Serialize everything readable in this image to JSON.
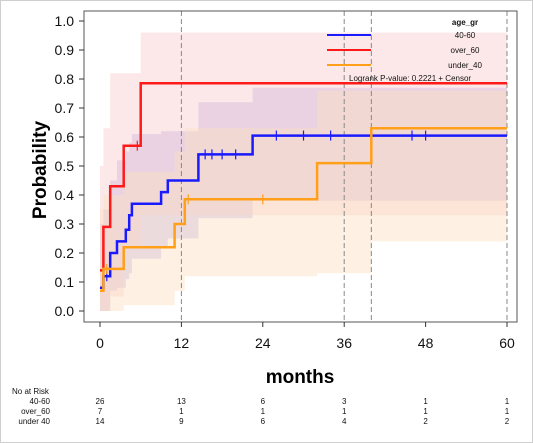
{
  "chart_data": {
    "type": "line",
    "step": true,
    "xlabel": "months",
    "ylabel": "Probability",
    "xlim": [
      0,
      60
    ],
    "ylim": [
      0,
      1
    ],
    "xticks": [
      0,
      12,
      24,
      36,
      48,
      60
    ],
    "yticks": [
      0.0,
      0.1,
      0.2,
      0.3,
      0.4,
      0.5,
      0.6,
      0.7,
      0.8,
      0.9,
      1.0
    ],
    "legend": {
      "title": "age_gr",
      "placement": "top-right"
    },
    "annotation": "Logrank P-value: 0.2221  +  Censor",
    "vlines": [
      12,
      36,
      40,
      60
    ],
    "series": [
      {
        "name": "40-60",
        "color": "#1a1aff",
        "fill": "#b9a6e8",
        "x": [
          0,
          0.5,
          1.5,
          2.5,
          3.8,
          4.3,
          4.7,
          9,
          10,
          14.5,
          22.5,
          60
        ],
        "y": [
          0.08,
          0.12,
          0.2,
          0.24,
          0.28,
          0.33,
          0.37,
          0.41,
          0.45,
          0.54,
          0.605,
          0.605
        ],
        "ci_lower": [
          0.0,
          0.0,
          0.07,
          0.08,
          0.11,
          0.13,
          0.18,
          0.22,
          0.25,
          0.32,
          0.38,
          0.38
        ],
        "ci_upper": [
          0.3,
          0.35,
          0.45,
          0.52,
          0.55,
          0.58,
          0.61,
          0.62,
          0.62,
          0.72,
          0.77,
          0.77
        ],
        "censor_x": [
          1,
          15.5,
          16.5,
          18,
          20,
          26,
          30,
          34,
          46,
          48
        ]
      },
      {
        "name": "over_60",
        "color": "#ff1a1a",
        "fill": "#f9cccc",
        "x": [
          0,
          0.5,
          1.5,
          3.5,
          6,
          60
        ],
        "y": [
          0.14,
          0.29,
          0.43,
          0.57,
          0.785,
          0.785
        ],
        "ci_lower": [
          0.0,
          0.0,
          0.05,
          0.22,
          0.33,
          0.33
        ],
        "ci_upper": [
          0.5,
          0.63,
          0.82,
          0.82,
          0.96,
          0.96
        ],
        "censor_x": [
          5.5
        ]
      },
      {
        "name": "under_40",
        "color": "#ff9f1a",
        "fill": "#fde0c2",
        "x": [
          0,
          0.5,
          3.5,
          11,
          12.5,
          27,
          32,
          40,
          60
        ],
        "y": [
          0.07,
          0.145,
          0.22,
          0.3,
          0.385,
          0.385,
          0.51,
          0.63,
          0.63
        ],
        "ci_lower": [
          0.0,
          0.0,
          0.02,
          0.07,
          0.12,
          0.12,
          0.13,
          0.24,
          0.24
        ],
        "ci_upper": [
          0.35,
          0.4,
          0.48,
          0.55,
          0.63,
          0.63,
          0.76,
          0.76,
          0.76
        ],
        "censor_x": [
          1,
          13,
          24
        ]
      }
    ],
    "risk_table": {
      "title": "No at Risk",
      "times": [
        0,
        12,
        24,
        36,
        48,
        60
      ],
      "rows": [
        {
          "label": "40-60",
          "values": [
            "26",
            "13",
            "6",
            "3",
            "1",
            "1"
          ]
        },
        {
          "label": "over_60",
          "values": [
            "7",
            "1",
            "1",
            "1",
            "1",
            "1"
          ]
        },
        {
          "label": "under 40",
          "values": [
            "14",
            "9",
            "6",
            "4",
            "2",
            "2"
          ]
        }
      ]
    }
  }
}
